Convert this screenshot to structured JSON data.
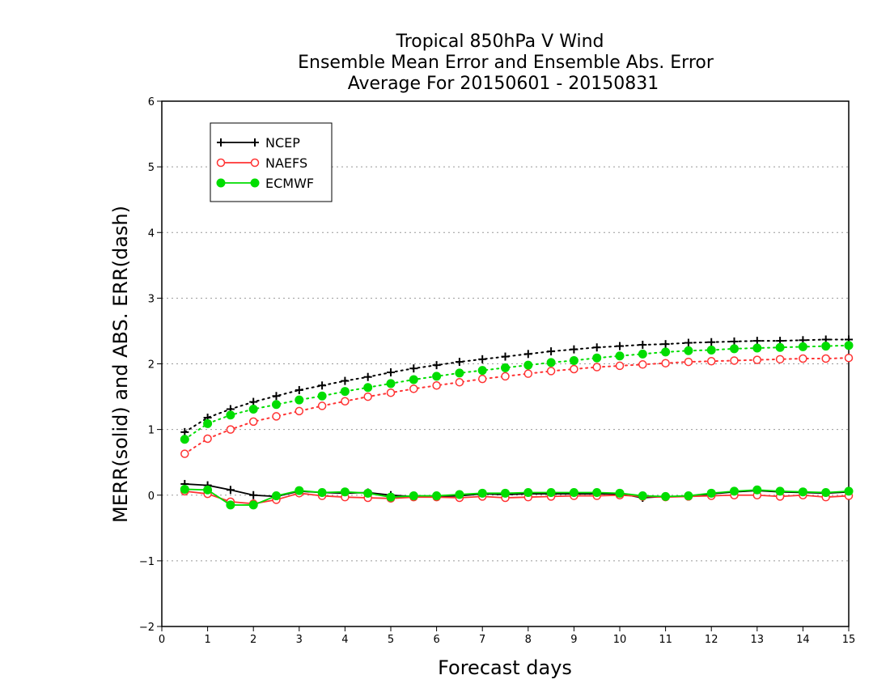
{
  "chart_data": {
    "type": "line",
    "title_lines": [
      "Tropical 850hPa V Wind",
      "Ensemble Mean Error and Ensemble Abs. Error",
      "Average For 20150601 - 20150831"
    ],
    "xlabel": "Forecast days",
    "ylabel": "MERR(solid) and ABS. ERR(dash)",
    "xlim": [
      0,
      15
    ],
    "ylim": [
      -2,
      6
    ],
    "x_ticks": [
      "0",
      "1",
      "2",
      "3",
      "4",
      "5",
      "6",
      "7",
      "8",
      "9",
      "10",
      "11",
      "12",
      "13",
      "14",
      "15"
    ],
    "y_ticks": [
      "−2",
      "−1",
      "0",
      "1",
      "2",
      "3",
      "4",
      "5",
      "6"
    ],
    "grid": "horizontal dotted",
    "legend_position": "top-left",
    "x": [
      0.5,
      1,
      1.5,
      2,
      2.5,
      3,
      3.5,
      4,
      4.5,
      5,
      5.5,
      6,
      6.5,
      7,
      7.5,
      8,
      8.5,
      9,
      9.5,
      10,
      10.5,
      11,
      11.5,
      12,
      12.5,
      13,
      13.5,
      14,
      14.5,
      15
    ],
    "series": [
      {
        "name": "NCEP",
        "color": "#000000",
        "marker": "plus",
        "merr": [
          0.17,
          0.15,
          0.08,
          0.0,
          -0.02,
          0.06,
          0.04,
          0.03,
          0.04,
          0.0,
          -0.02,
          -0.02,
          -0.01,
          0.02,
          0.01,
          0.02,
          0.02,
          0.02,
          0.02,
          0.02,
          -0.04,
          -0.02,
          -0.02,
          0.02,
          0.05,
          0.07,
          0.05,
          0.04,
          0.03,
          0.05
        ],
        "abs_err": [
          0.96,
          1.18,
          1.31,
          1.42,
          1.51,
          1.6,
          1.67,
          1.74,
          1.8,
          1.87,
          1.93,
          1.98,
          2.03,
          2.07,
          2.11,
          2.15,
          2.19,
          2.22,
          2.25,
          2.27,
          2.29,
          2.3,
          2.32,
          2.33,
          2.34,
          2.35,
          2.35,
          2.36,
          2.37,
          2.37
        ]
      },
      {
        "name": "NAEFS",
        "color": "#ff3333",
        "marker": "open-circle",
        "merr": [
          0.06,
          0.02,
          -0.1,
          -0.13,
          -0.07,
          0.03,
          -0.01,
          -0.03,
          -0.04,
          -0.05,
          -0.03,
          -0.03,
          -0.04,
          -0.02,
          -0.04,
          -0.03,
          -0.02,
          -0.01,
          -0.01,
          0.0,
          -0.02,
          -0.03,
          -0.02,
          -0.01,
          0.0,
          0.0,
          -0.02,
          0.0,
          -0.03,
          -0.01
        ],
        "abs_err": [
          0.63,
          0.86,
          1.0,
          1.12,
          1.2,
          1.28,
          1.36,
          1.43,
          1.5,
          1.56,
          1.62,
          1.67,
          1.72,
          1.77,
          1.81,
          1.85,
          1.89,
          1.92,
          1.95,
          1.97,
          1.99,
          2.01,
          2.03,
          2.04,
          2.05,
          2.06,
          2.07,
          2.08,
          2.08,
          2.09
        ]
      },
      {
        "name": "ECMWF",
        "color": "#00dd00",
        "marker": "filled-circle",
        "merr": [
          0.09,
          0.08,
          -0.15,
          -0.15,
          -0.01,
          0.07,
          0.04,
          0.05,
          0.03,
          -0.03,
          -0.01,
          -0.01,
          0.01,
          0.03,
          0.03,
          0.04,
          0.04,
          0.04,
          0.04,
          0.03,
          -0.01,
          -0.02,
          -0.01,
          0.03,
          0.06,
          0.08,
          0.06,
          0.05,
          0.04,
          0.06
        ],
        "abs_err": [
          0.85,
          1.09,
          1.22,
          1.31,
          1.38,
          1.45,
          1.51,
          1.58,
          1.64,
          1.7,
          1.76,
          1.81,
          1.86,
          1.9,
          1.94,
          1.98,
          2.02,
          2.05,
          2.09,
          2.12,
          2.15,
          2.18,
          2.2,
          2.21,
          2.23,
          2.24,
          2.25,
          2.26,
          2.27,
          2.28
        ]
      }
    ]
  }
}
